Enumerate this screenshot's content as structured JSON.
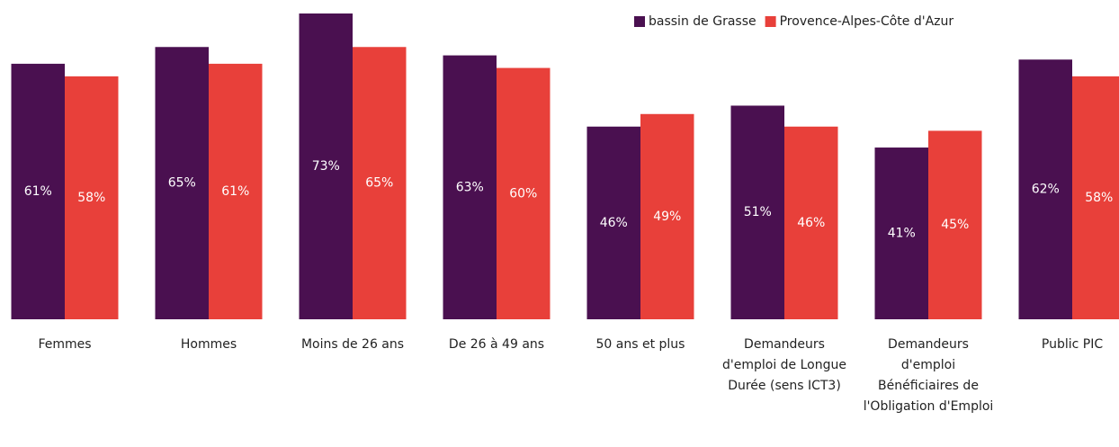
{
  "chart_data": {
    "type": "bar",
    "categories": [
      "Femmes",
      "Hommes",
      "Moins de 26 ans",
      "De 26 à 49 ans",
      "50 ans et plus",
      "Demandeurs d'emploi de Longue Durée (sens ICT3)",
      "Demandeurs d'emploi Bénéficiaires de l'Obligation d'Emploi",
      "Public PIC"
    ],
    "series": [
      {
        "name": "bassin de Grasse",
        "color": "#4a1050",
        "values": [
          61,
          65,
          73,
          63,
          46,
          51,
          41,
          62
        ],
        "value_labels": [
          "61%",
          "65%",
          "73%",
          "63%",
          "46%",
          "51%",
          "41%",
          "62%"
        ]
      },
      {
        "name": "Provence-Alpes-Côte d'Azur",
        "color": "#e8403a",
        "values": [
          58,
          61,
          65,
          60,
          49,
          46,
          45,
          58
        ],
        "value_labels": [
          "58%",
          "61%",
          "65%",
          "60%",
          "49%",
          "46%",
          "45%",
          "58%"
        ]
      }
    ],
    "legend": "top-right"
  }
}
